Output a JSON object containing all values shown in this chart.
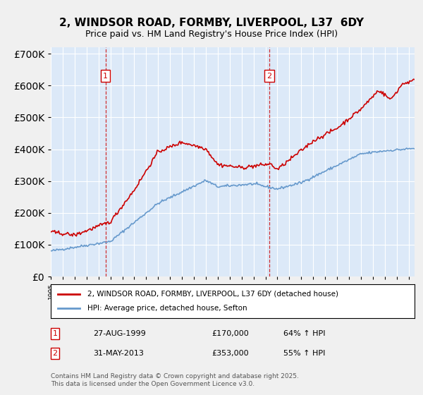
{
  "title": "2, WINDSOR ROAD, FORMBY, LIVERPOOL, L37  6DY",
  "subtitle": "Price paid vs. HM Land Registry's House Price Index (HPI)",
  "legend_line1": "2, WINDSOR ROAD, FORMBY, LIVERPOOL, L37 6DY (detached house)",
  "legend_line2": "HPI: Average price, detached house, Sefton",
  "marker1_date": "27-AUG-1999",
  "marker1_price": 170000,
  "marker1_label": "64% ↑ HPI",
  "marker2_date": "31-MAY-2013",
  "marker2_price": 353000,
  "marker2_label": "55% ↑ HPI",
  "footnote": "Contains HM Land Registry data © Crown copyright and database right 2025.\nThis data is licensed under the Open Government Licence v3.0.",
  "background_color": "#dce9f8",
  "plot_bg_color": "#dce9f8",
  "fig_bg_color": "#f0f0f0",
  "red_color": "#cc0000",
  "blue_color": "#6699cc",
  "ylim": [
    0,
    720000
  ],
  "xlim_start": 1995.0,
  "xlim_end": 2025.5
}
